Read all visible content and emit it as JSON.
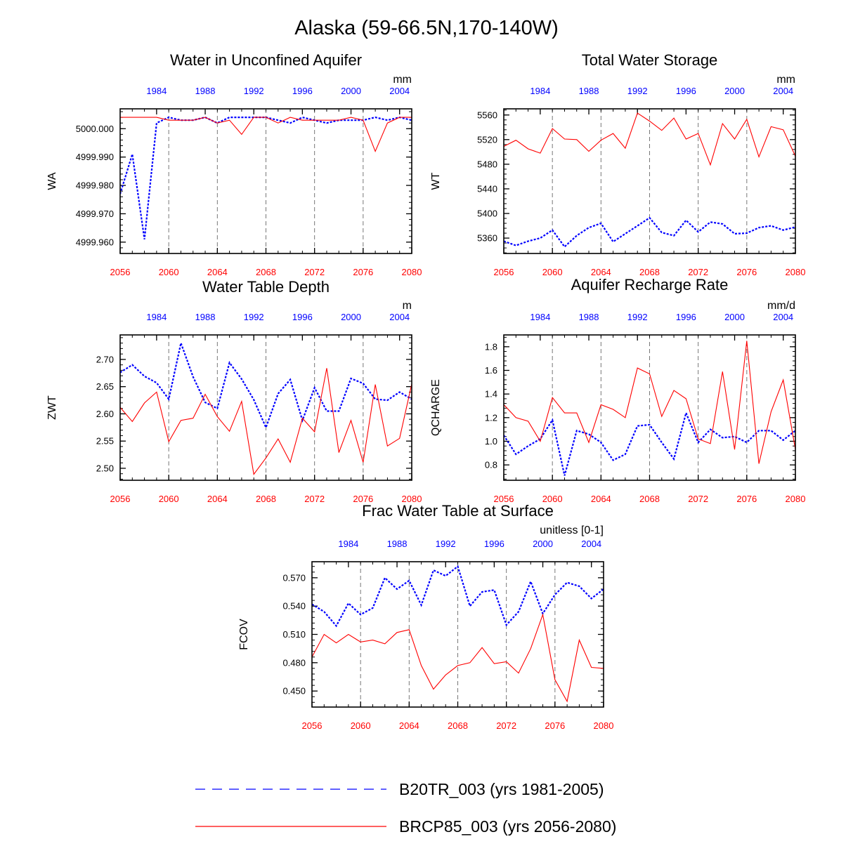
{
  "figure_title": "Alaska (59-66.5N,170-140W)",
  "colors": {
    "historical": "#0000ff",
    "future": "#ff0000",
    "axis": "#000000",
    "grid": "#777777"
  },
  "legend": {
    "items": [
      {
        "label": "B20TR_003 (yrs 1981-2005)",
        "color": "#0000ff",
        "style": "dashed"
      },
      {
        "label": "BRCP85_003 (yrs 2056-2080)",
        "color": "#ff0000",
        "style": "solid"
      }
    ]
  },
  "chart_data": [
    {
      "type": "line",
      "title": "Water in Unconfined Aquifer",
      "ylabel": "WA",
      "units": "mm",
      "ylim": [
        4999.956,
        5000.007
      ],
      "yticks": [
        "4999.960",
        "4999.970",
        "4999.980",
        "4999.990",
        "5000.000"
      ],
      "bottom_x_ticks": [
        "2056",
        "2060",
        "2064",
        "2068",
        "2072",
        "2076",
        "2080"
      ],
      "top_x_ticks": [
        "1984",
        "1988",
        "1992",
        "1996",
        "2000",
        "2004"
      ],
      "series": [
        {
          "name": "B20TR_003 (yrs 1981-2005)",
          "x": [
            1981,
            1982,
            1983,
            1984,
            1985,
            1986,
            1987,
            1988,
            1989,
            1990,
            1991,
            1992,
            1993,
            1994,
            1995,
            1996,
            1997,
            1998,
            1999,
            2000,
            2001,
            2002,
            2003,
            2004,
            2005
          ],
          "values": [
            4999.977,
            4999.991,
            4999.961,
            5000.002,
            5000.004,
            5000.003,
            5000.003,
            5000.004,
            5000.002,
            5000.004,
            5000.004,
            5000.004,
            5000.004,
            5000.003,
            5000.002,
            5000.004,
            5000.003,
            5000.002,
            5000.003,
            5000.003,
            5000.003,
            5000.004,
            5000.003,
            5000.004,
            5000.003
          ]
        },
        {
          "name": "BRCP85_003 (yrs 2056-2080)",
          "x": [
            2056,
            2057,
            2058,
            2059,
            2060,
            2061,
            2062,
            2063,
            2064,
            2065,
            2066,
            2067,
            2068,
            2069,
            2070,
            2071,
            2072,
            2073,
            2074,
            2075,
            2076,
            2077,
            2078,
            2079,
            2080
          ],
          "values": [
            5000.004,
            5000.004,
            5000.004,
            5000.004,
            5000.003,
            5000.003,
            5000.003,
            5000.004,
            5000.002,
            5000.003,
            4999.998,
            5000.004,
            5000.004,
            5000.002,
            5000.004,
            5000.003,
            5000.003,
            5000.003,
            5000.003,
            5000.004,
            5000.003,
            4999.992,
            5000.002,
            5000.004,
            5000.004
          ]
        }
      ]
    },
    {
      "type": "line",
      "title": "Total Water Storage",
      "ylabel": "WT",
      "units": "mm",
      "ylim": [
        5335,
        5570
      ],
      "yticks": [
        "5360",
        "5400",
        "5440",
        "5480",
        "5520",
        "5560"
      ],
      "bottom_x_ticks": [
        "2056",
        "2060",
        "2064",
        "2068",
        "2072",
        "2076",
        "2080"
      ],
      "top_x_ticks": [
        "1984",
        "1988",
        "1992",
        "1996",
        "2000",
        "2004"
      ],
      "series": [
        {
          "name": "B20TR_003 (yrs 1981-2005)",
          "x": [
            1981,
            1982,
            1983,
            1984,
            1985,
            1986,
            1987,
            1988,
            1989,
            1990,
            1991,
            1992,
            1993,
            1994,
            1995,
            1996,
            1997,
            1998,
            1999,
            2000,
            2001,
            2002,
            2003,
            2004,
            2005
          ],
          "values": [
            5355,
            5348,
            5355,
            5360,
            5373,
            5346,
            5364,
            5377,
            5384,
            5354,
            5367,
            5380,
            5393,
            5369,
            5364,
            5389,
            5370,
            5386,
            5383,
            5367,
            5368,
            5377,
            5380,
            5373,
            5378
          ]
        },
        {
          "name": "BRCP85_003 (yrs 2056-2080)",
          "x": [
            2056,
            2057,
            2058,
            2059,
            2060,
            2061,
            2062,
            2063,
            2064,
            2065,
            2066,
            2067,
            2068,
            2069,
            2070,
            2071,
            2072,
            2073,
            2074,
            2075,
            2076,
            2077,
            2078,
            2079,
            2080
          ],
          "values": [
            5509,
            5519,
            5505,
            5498,
            5538,
            5521,
            5520,
            5501,
            5519,
            5530,
            5506,
            5563,
            5550,
            5535,
            5555,
            5521,
            5530,
            5479,
            5546,
            5521,
            5553,
            5492,
            5541,
            5536,
            5493
          ]
        }
      ]
    },
    {
      "type": "line",
      "title": "Water Table Depth",
      "ylabel": "ZWT",
      "units": "m",
      "ylim": [
        2.478,
        2.745
      ],
      "yticks": [
        "2.50",
        "2.55",
        "2.60",
        "2.65",
        "2.70"
      ],
      "bottom_x_ticks": [
        "2056",
        "2060",
        "2064",
        "2068",
        "2072",
        "2076",
        "2080"
      ],
      "top_x_ticks": [
        "1984",
        "1988",
        "1992",
        "1996",
        "2000",
        "2004"
      ],
      "series": [
        {
          "name": "B20TR_003 (yrs 1981-2005)",
          "x": [
            1981,
            1982,
            1983,
            1984,
            1985,
            1986,
            1987,
            1988,
            1989,
            1990,
            1991,
            1992,
            1993,
            1994,
            1995,
            1996,
            1997,
            1998,
            1999,
            2000,
            2001,
            2002,
            2003,
            2004,
            2005
          ],
          "values": [
            2.676,
            2.69,
            2.669,
            2.657,
            2.627,
            2.73,
            2.668,
            2.621,
            2.61,
            2.694,
            2.664,
            2.626,
            2.575,
            2.637,
            2.663,
            2.588,
            2.648,
            2.605,
            2.605,
            2.665,
            2.656,
            2.627,
            2.625,
            2.64,
            2.627
          ]
        },
        {
          "name": "BRCP85_003 (yrs 2056-2080)",
          "x": [
            2056,
            2057,
            2058,
            2059,
            2060,
            2061,
            2062,
            2063,
            2064,
            2065,
            2066,
            2067,
            2068,
            2069,
            2070,
            2071,
            2072,
            2073,
            2074,
            2075,
            2076,
            2077,
            2078,
            2079,
            2080
          ],
          "values": [
            2.612,
            2.586,
            2.62,
            2.64,
            2.549,
            2.588,
            2.592,
            2.636,
            2.595,
            2.568,
            2.623,
            2.489,
            2.519,
            2.554,
            2.511,
            2.592,
            2.567,
            2.684,
            2.529,
            2.588,
            2.511,
            2.654,
            2.541,
            2.555,
            2.655
          ]
        }
      ]
    },
    {
      "type": "line",
      "title": "Aquifer Recharge Rate",
      "ylabel": "QCHARGE",
      "units": "mm/d",
      "ylim": [
        0.67,
        1.9
      ],
      "yticks": [
        "0.8",
        "1.0",
        "1.2",
        "1.4",
        "1.6",
        "1.8"
      ],
      "bottom_x_ticks": [
        "2056",
        "2060",
        "2064",
        "2068",
        "2072",
        "2076",
        "2080"
      ],
      "top_x_ticks": [
        "1984",
        "1988",
        "1992",
        "1996",
        "2000",
        "2004"
      ],
      "series": [
        {
          "name": "B20TR_003 (yrs 1981-2005)",
          "x": [
            1981,
            1982,
            1983,
            1984,
            1985,
            1986,
            1987,
            1988,
            1989,
            1990,
            1991,
            1992,
            1993,
            1994,
            1995,
            1996,
            1997,
            1998,
            1999,
            2000,
            2001,
            2002,
            2003,
            2004,
            2005
          ],
          "values": [
            1.05,
            0.89,
            0.96,
            1.02,
            1.18,
            0.71,
            1.09,
            1.06,
            0.99,
            0.84,
            0.89,
            1.13,
            1.14,
            0.99,
            0.85,
            1.24,
            0.99,
            1.1,
            1.03,
            1.04,
            0.99,
            1.09,
            1.09,
            1.01,
            1.09
          ]
        },
        {
          "name": "BRCP85_003 (yrs 2056-2080)",
          "x": [
            2056,
            2057,
            2058,
            2059,
            2060,
            2061,
            2062,
            2063,
            2064,
            2065,
            2066,
            2067,
            2068,
            2069,
            2070,
            2071,
            2072,
            2073,
            2074,
            2075,
            2076,
            2077,
            2078,
            2079,
            2080
          ],
          "values": [
            1.31,
            1.2,
            1.17,
            1.0,
            1.37,
            1.24,
            1.24,
            0.99,
            1.31,
            1.27,
            1.2,
            1.62,
            1.57,
            1.21,
            1.43,
            1.36,
            1.02,
            0.98,
            1.59,
            0.93,
            1.85,
            0.81,
            1.25,
            1.52,
            0.93
          ]
        }
      ]
    },
    {
      "type": "line",
      "title": "Frac Water Table at Surface",
      "ylabel": "FCOV",
      "units": "unitless [0-1]",
      "ylim": [
        0.433,
        0.587
      ],
      "yticks": [
        "0.450",
        "0.480",
        "0.510",
        "0.540",
        "0.570"
      ],
      "bottom_x_ticks": [
        "2056",
        "2060",
        "2064",
        "2068",
        "2072",
        "2076",
        "2080"
      ],
      "top_x_ticks": [
        "1984",
        "1988",
        "1992",
        "1996",
        "2000",
        "2004"
      ],
      "series": [
        {
          "name": "B20TR_003 (yrs 1981-2005)",
          "x": [
            1981,
            1982,
            1983,
            1984,
            1985,
            1986,
            1987,
            1988,
            1989,
            1990,
            1991,
            1992,
            1993,
            1994,
            1995,
            1996,
            1997,
            1998,
            1999,
            2000,
            2001,
            2002,
            2003,
            2004,
            2005
          ],
          "values": [
            0.542,
            0.534,
            0.519,
            0.543,
            0.531,
            0.538,
            0.57,
            0.558,
            0.567,
            0.541,
            0.578,
            0.572,
            0.582,
            0.54,
            0.555,
            0.557,
            0.52,
            0.534,
            0.566,
            0.532,
            0.552,
            0.565,
            0.561,
            0.548,
            0.558
          ]
        },
        {
          "name": "BRCP85_003 (yrs 2056-2080)",
          "x": [
            2056,
            2057,
            2058,
            2059,
            2060,
            2061,
            2062,
            2063,
            2064,
            2065,
            2066,
            2067,
            2068,
            2069,
            2070,
            2071,
            2072,
            2073,
            2074,
            2075,
            2076,
            2077,
            2078,
            2079,
            2080
          ],
          "values": [
            0.486,
            0.51,
            0.501,
            0.51,
            0.502,
            0.504,
            0.5,
            0.512,
            0.515,
            0.477,
            0.452,
            0.467,
            0.477,
            0.48,
            0.496,
            0.479,
            0.481,
            0.469,
            0.495,
            0.531,
            0.462,
            0.439,
            0.504,
            0.475,
            0.474
          ]
        }
      ]
    }
  ]
}
